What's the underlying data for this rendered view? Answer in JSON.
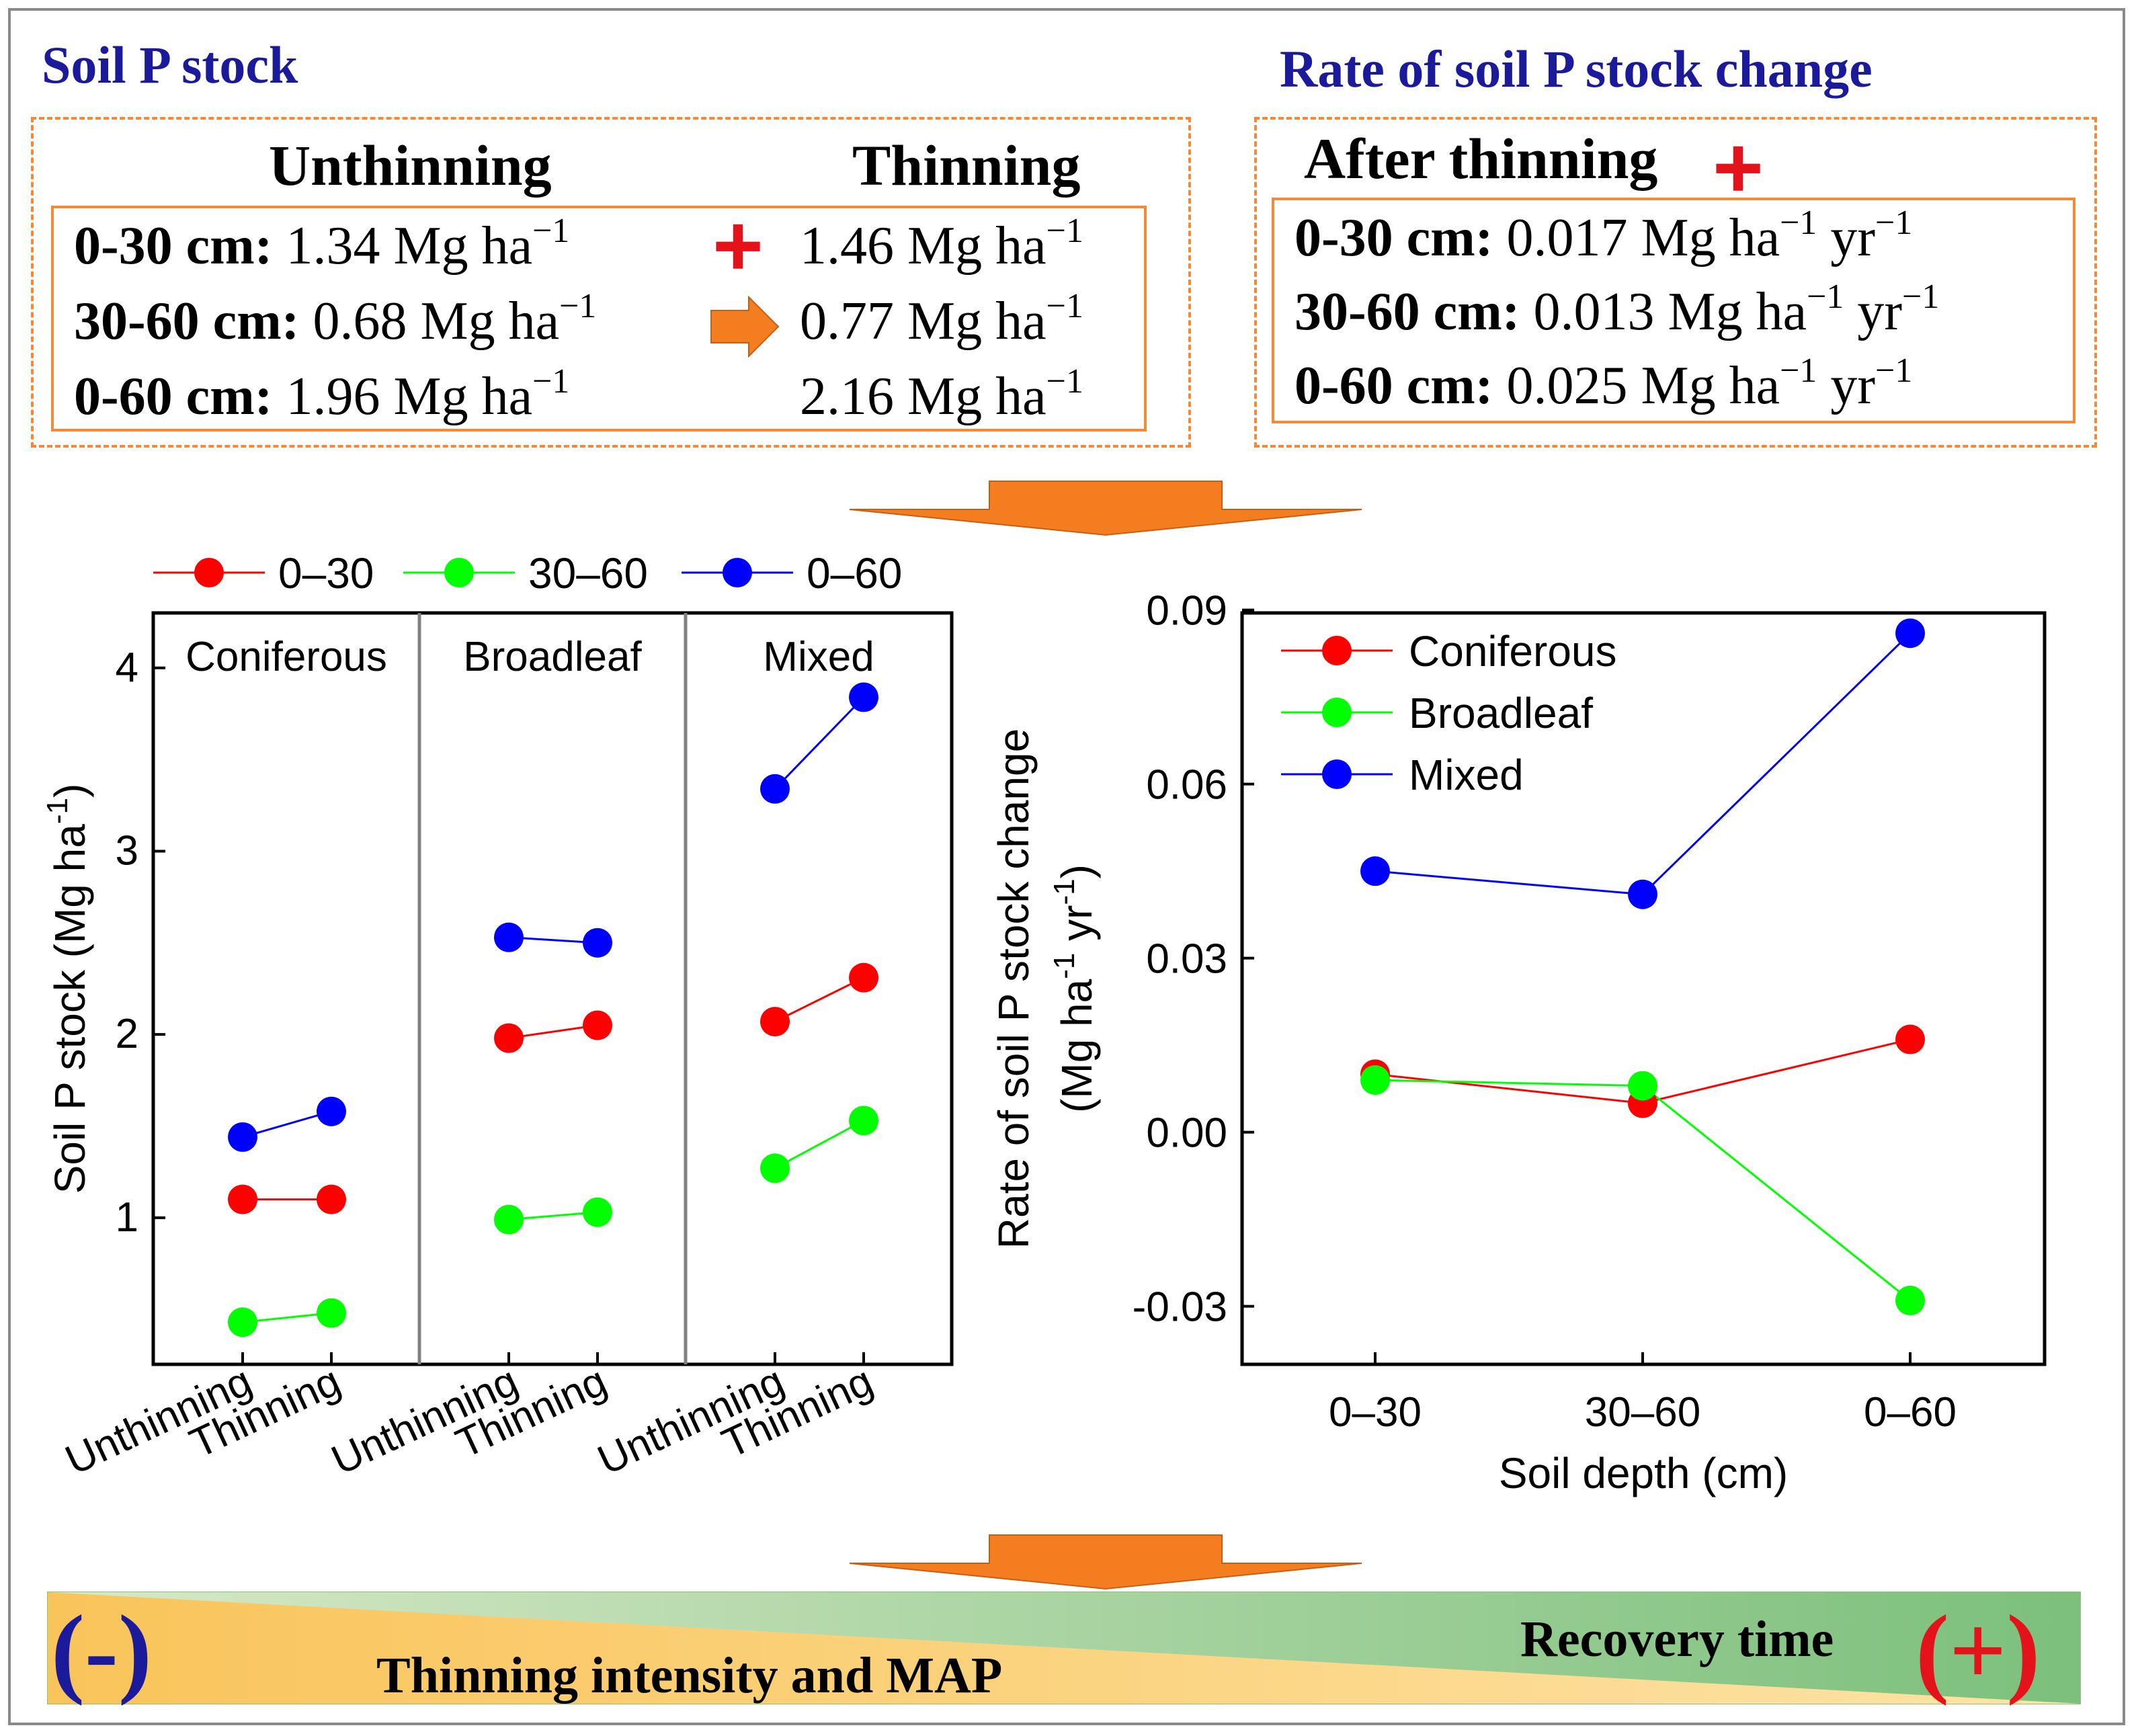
{
  "top_left": {
    "title": "Soil P stock",
    "col_unthinning": "Unthinning",
    "col_thinning": "Thinning",
    "rows": [
      {
        "label": "0-30 cm:",
        "unthinning": "1.34 Mg ha",
        "thinning": "1.46 Mg ha"
      },
      {
        "label": "30-60 cm:",
        "unthinning": "0.68 Mg ha",
        "thinning": "0.77 Mg ha"
      },
      {
        "label": "0-60 cm:",
        "unthinning": "1.96 Mg ha",
        "thinning": "2.16 Mg ha"
      }
    ],
    "unit_exp": "−1",
    "plus_sign": "+"
  },
  "top_right": {
    "title": "Rate of soil P stock change",
    "heading": "After thinning",
    "plus_sign": "+",
    "rows": [
      {
        "label": "0-30 cm:",
        "value": "0.017 Mg ha",
        "exp1": "−1",
        "unit2": " yr",
        "exp2": "−1"
      },
      {
        "label": "30-60 cm:",
        "value": "0.013 Mg ha",
        "exp1": "−1",
        "unit2": " yr",
        "exp2": "−1"
      },
      {
        "label": "0-60 cm:",
        "value": "0.025 Mg ha",
        "exp1": "−1",
        "unit2": " yr",
        "exp2": "−1"
      }
    ]
  },
  "colors": {
    "title_blue": "#1a1a9a",
    "box_orange": "#f28a3a",
    "arrow_orange": "#f47d20",
    "red": "#ff0000",
    "green": "#00ff00",
    "blue": "#0000ff",
    "plus_red": "#e4121b"
  },
  "chart_data": [
    {
      "type": "line",
      "title": "",
      "ylabel": "Soil P stock (Mg ha-1)",
      "ylabel_main": "Soil P stock (Mg ha",
      "ylabel_sup": "-1",
      "ylabel_close": ")",
      "ylim": [
        0.2,
        4.3
      ],
      "yticks": [
        "1",
        "2",
        "3",
        "4"
      ],
      "panels": [
        "Coniferous",
        "Broadleaf",
        "Mixed"
      ],
      "categories": [
        "Unthinning",
        "Thinning"
      ],
      "legend": [
        "0–30",
        "30–60",
        "0–60"
      ],
      "series": [
        {
          "name": "0–30",
          "color": "#ff0000",
          "values": [
            [
              1.1,
              1.1
            ],
            [
              1.98,
              2.05
            ],
            [
              2.07,
              2.31
            ]
          ]
        },
        {
          "name": "30–60",
          "color": "#00ff00",
          "values": [
            [
              0.43,
              0.48
            ],
            [
              0.99,
              1.03
            ],
            [
              1.27,
              1.53
            ]
          ]
        },
        {
          "name": "0–60",
          "color": "#0000ff",
          "values": [
            [
              1.44,
              1.58
            ],
            [
              2.53,
              2.5
            ],
            [
              3.34,
              3.84
            ]
          ]
        }
      ]
    },
    {
      "type": "line",
      "title": "",
      "xlabel": "Soil depth (cm)",
      "ylabel_line1": "Rate of soil P stock change",
      "ylabel_line2_main": "(Mg ha",
      "ylabel_line2_sup1": "-1",
      "ylabel_line2_mid": " yr",
      "ylabel_line2_sup2": "-1",
      "ylabel_line2_close": ")",
      "categories": [
        "0–30",
        "30–60",
        "0–60"
      ],
      "ylim": [
        -0.04,
        0.0895
      ],
      "yticks": [
        "-0.03",
        "0.00",
        "0.03",
        "0.06",
        "0.09"
      ],
      "series": [
        {
          "name": "Coniferous",
          "color": "#ff0000",
          "values": [
            0.01,
            0.005,
            0.016
          ]
        },
        {
          "name": "Broadleaf",
          "color": "#00ff00",
          "values": [
            0.009,
            0.008,
            -0.029
          ]
        },
        {
          "name": "Mixed",
          "color": "#0000ff",
          "values": [
            0.045,
            0.041,
            0.086
          ]
        }
      ]
    }
  ],
  "bottom": {
    "left_text": "Thinning intensity and MAP",
    "right_text": "Recovery time",
    "minus_label": "(-)",
    "plus_label": "(+)"
  }
}
